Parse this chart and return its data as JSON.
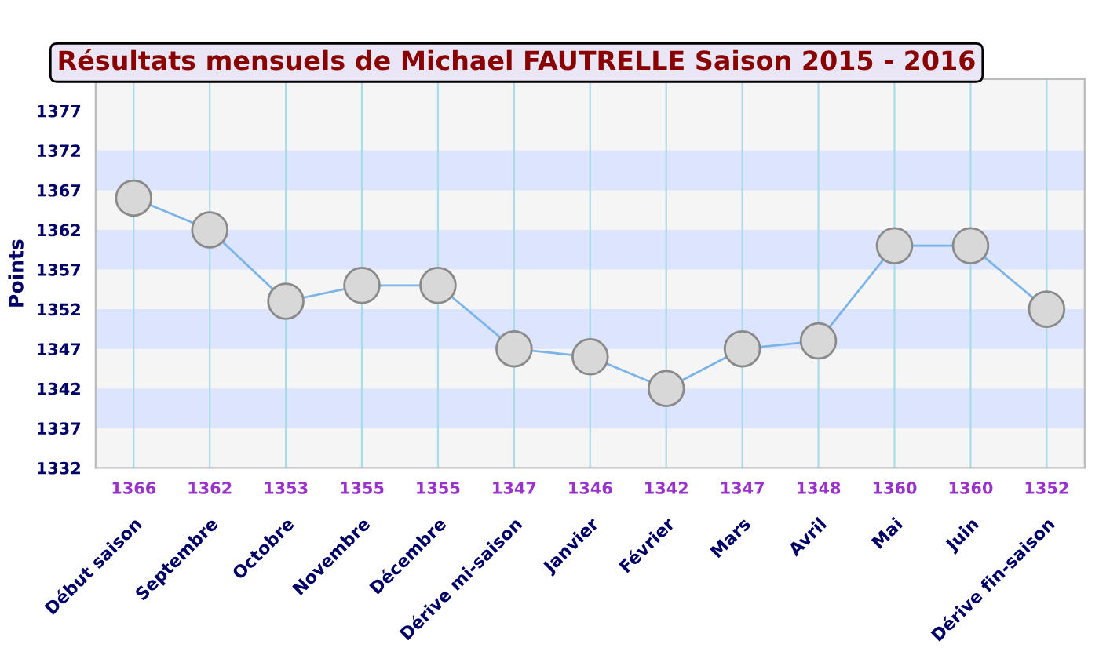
{
  "chart_data": {
    "type": "line",
    "title": "Résultats mensuels de Michael FAUTRELLE Saison 2015 - 2016",
    "ylabel": "Points",
    "categories": [
      "Début saison",
      "Septembre",
      "Octobre",
      "Novembre",
      "Décembre",
      "Dérive mi-saison",
      "Janvier",
      "Février",
      "Mars",
      "Avril",
      "Mai",
      "Juin",
      "Dérive fin-saison"
    ],
    "series": [
      {
        "color": "#7ab4e8",
        "values": [
          1366,
          1362,
          1353,
          1355,
          1355,
          1347,
          1346,
          1342,
          1347,
          1348,
          1360,
          1360,
          1352
        ]
      }
    ],
    "ylim": [
      1332,
      1381
    ],
    "yticks": [
      1332,
      1337,
      1342,
      1347,
      1352,
      1357,
      1362,
      1367,
      1372,
      1377
    ],
    "bands": [
      {
        "axis": "y",
        "from": 1337,
        "to": 1342,
        "color": "#dde4fd"
      },
      {
        "axis": "y",
        "from": 1347,
        "to": 1352,
        "color": "#dde4fd"
      },
      {
        "axis": "y",
        "from": 1357,
        "to": 1362,
        "color": "#dde4fd"
      },
      {
        "axis": "y",
        "from": 1367,
        "to": 1372,
        "color": "#dde4fd"
      }
    ],
    "grid": "x",
    "marker": "circle",
    "line_style": "solid",
    "data_labels": true,
    "legend": false
  }
}
